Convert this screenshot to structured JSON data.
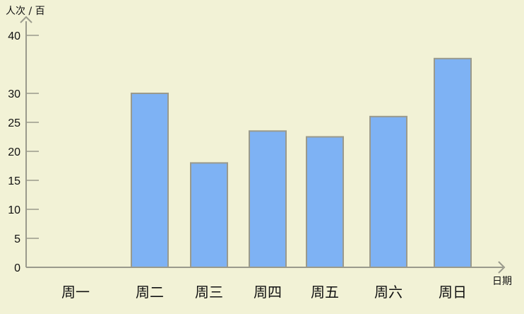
{
  "chart_data": {
    "type": "bar",
    "title": "",
    "xlabel": "日期",
    "ylabel": "人次 / 百",
    "categories": [
      "周一",
      "周二",
      "周三",
      "周四",
      "周五",
      "周六",
      "周日"
    ],
    "values": [
      0,
      30,
      18,
      23.5,
      22.5,
      26,
      36
    ],
    "yticks": [
      {
        "value": 0,
        "label": "0"
      },
      {
        "value": 5,
        "label": "5"
      },
      {
        "value": 10,
        "label": "10"
      },
      {
        "value": 15,
        "label": "15"
      },
      {
        "value": 20,
        "label": "20"
      },
      {
        "value": 25,
        "label": "25"
      },
      {
        "value": 30,
        "label": "30"
      },
      {
        "value": 40,
        "label": "40"
      }
    ],
    "ylim": [
      0,
      40
    ],
    "grid": false,
    "legend": "none",
    "colors": {
      "background": "#f2f2d6",
      "bar_fill": "#7eb2f4",
      "bar_stroke": "#9a9a8c",
      "axis": "#9a9a8c",
      "text": "#111111"
    }
  }
}
